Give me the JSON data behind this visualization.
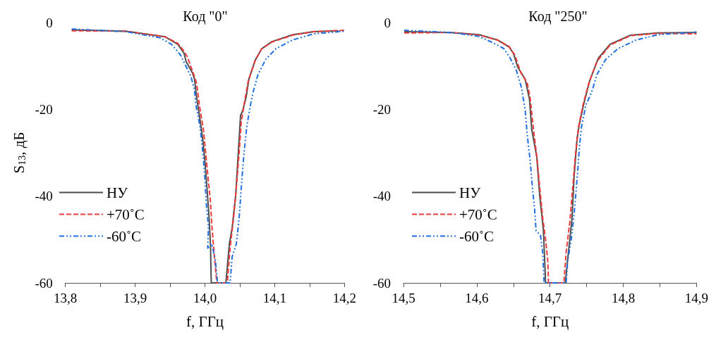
{
  "chart_data": [
    {
      "type": "line",
      "title": "Код \"0\"",
      "xlabel": "f, ГГц",
      "ylabel": "S$_{13}$, дБ",
      "xlim": [
        13.8,
        14.2
      ],
      "ylim": [
        -60,
        0
      ],
      "xticks": [
        {
          "value": 13.8,
          "label": "13,8"
        },
        {
          "value": 13.85,
          "label": null
        },
        {
          "value": 13.9,
          "label": "13,9"
        },
        {
          "value": 13.95,
          "label": null
        },
        {
          "value": 14.0,
          "label": "14,0"
        },
        {
          "value": 14.05,
          "label": null
        },
        {
          "value": 14.1,
          "label": "14,1"
        },
        {
          "value": 14.15,
          "label": null
        },
        {
          "value": 14.2,
          "label": "14,2"
        }
      ],
      "yticks": [
        0,
        -20,
        -40,
        -60
      ],
      "grid": false,
      "legend": "left",
      "marker": "none",
      "series": [
        {
          "name": "НУ",
          "color": "#4d4d4d",
          "line_style": "solid",
          "x": [
            13.809,
            13.886,
            13.943,
            13.961,
            13.97,
            13.973,
            13.982,
            13.985,
            13.988,
            13.993,
            13.997,
            14.0,
            14.003,
            14.006,
            14.008,
            14.009,
            14.03,
            14.035,
            14.039,
            14.044,
            14.048,
            14.051,
            14.054,
            14.059,
            14.063,
            14.072,
            14.081,
            14.096,
            14.126,
            14.156,
            14.191
          ],
          "values": [
            -1.7,
            -2.0,
            -3.3,
            -5.0,
            -7.1,
            -9.0,
            -11.6,
            -13.0,
            -17.2,
            -22.5,
            -27.2,
            -32.0,
            -38.4,
            -45.2,
            -51.6,
            -60,
            -60,
            -51,
            -47.3,
            -39.9,
            -29.4,
            -21.4,
            -20.4,
            -17.2,
            -13.0,
            -8.7,
            -6.1,
            -4.4,
            -2.8,
            -2.1,
            -1.9
          ]
        },
        {
          "name": "+70˚C",
          "color": "#ee3a3a",
          "line_style": "dashed",
          "x": [
            13.809,
            13.886,
            13.943,
            13.961,
            13.97,
            13.975,
            13.984,
            13.988,
            13.992,
            13.998,
            14.001,
            14.004,
            14.008,
            14.01,
            14.013,
            14.017,
            14.032,
            14.036,
            14.041,
            14.045,
            14.049,
            14.052,
            14.057,
            14.062,
            14.072,
            14.081,
            14.096,
            14.126,
            14.156,
            14.2
          ],
          "values": [
            -1.9,
            -2.0,
            -3.3,
            -4.8,
            -6.6,
            -8.0,
            -12.0,
            -14.0,
            -19,
            -25,
            -30,
            -35,
            -41.5,
            -47,
            -53,
            -60,
            -60,
            -52,
            -45,
            -38,
            -30,
            -23,
            -18,
            -13.5,
            -8.7,
            -6.1,
            -4.5,
            -2.9,
            -2.1,
            -1.8
          ]
        },
        {
          "name": "-60˚C",
          "color": "#1f6fe0",
          "line_style": "dashdot",
          "x": [
            13.809,
            13.886,
            13.935,
            13.952,
            13.965,
            13.971,
            13.98,
            13.985,
            13.987,
            13.993,
            13.997,
            14.0,
            14.002,
            14.005,
            14.004,
            14.01,
            14.015,
            14.018,
            14.036,
            14.039,
            14.045,
            14.049,
            14.053,
            14.056,
            14.06,
            14.064,
            14.069,
            14.076,
            14.087,
            14.102,
            14.126,
            14.156,
            14.2
          ],
          "values": [
            -1.5,
            -2.1,
            -3.5,
            -5.0,
            -7.5,
            -9.5,
            -12.5,
            -15.5,
            -19,
            -24,
            -30,
            -36,
            -42,
            -47,
            -52,
            -51,
            -55,
            -60,
            -60,
            -54,
            -51,
            -45,
            -36,
            -30,
            -24,
            -20,
            -16,
            -12,
            -8.5,
            -6,
            -4,
            -2.6,
            -2.0
          ]
        }
      ]
    },
    {
      "type": "line",
      "title": "Код \"250\"",
      "xlabel": "f, ГГц",
      "xlim": [
        14.5,
        14.9
      ],
      "ylim": [
        -60,
        0
      ],
      "xticks": [
        {
          "value": 14.5,
          "label": "14,5"
        },
        {
          "value": 14.55,
          "label": null
        },
        {
          "value": 14.6,
          "label": "14,6"
        },
        {
          "value": 14.65,
          "label": null
        },
        {
          "value": 14.7,
          "label": "14,7"
        },
        {
          "value": 14.75,
          "label": null
        },
        {
          "value": 14.8,
          "label": "14,8"
        },
        {
          "value": 14.85,
          "label": null
        },
        {
          "value": 14.9,
          "label": "14,9"
        }
      ],
      "yticks": [
        0,
        -20,
        -40,
        -60
      ],
      "grid": false,
      "legend": "left",
      "marker": "none",
      "series": [
        {
          "name": "НУ",
          "color": "#4d4d4d",
          "line_style": "solid",
          "x": [
            14.501,
            14.565,
            14.603,
            14.628,
            14.644,
            14.65,
            14.656,
            14.666,
            14.672,
            14.675,
            14.682,
            14.686,
            14.691,
            14.694,
            14.721,
            14.724,
            14.73,
            14.733,
            14.737,
            14.74,
            14.746,
            14.754,
            14.766,
            14.782,
            14.81,
            14.848,
            14.9
          ],
          "values": [
            -2.1,
            -2.3,
            -2.8,
            -4.0,
            -5.6,
            -7.1,
            -10.3,
            -13.0,
            -17.7,
            -24.6,
            -31.0,
            -40,
            -47.9,
            -60,
            -60,
            -54.8,
            -45.2,
            -35.2,
            -26.7,
            -23.5,
            -18.8,
            -13.5,
            -8.2,
            -5.0,
            -2.9,
            -2.4,
            -2.3
          ]
        },
        {
          "name": "+70˚C",
          "color": "#ee3a3a",
          "line_style": "dashed",
          "x": [
            14.501,
            14.565,
            14.603,
            14.628,
            14.644,
            14.652,
            14.66,
            14.669,
            14.673,
            14.677,
            14.682,
            14.686,
            14.69,
            14.694,
            14.697,
            14.698,
            14.719,
            14.722,
            14.727,
            14.731,
            14.735,
            14.739,
            14.745,
            14.753,
            14.764,
            14.782,
            14.81,
            14.848,
            14.9
          ],
          "values": [
            -2.4,
            -2.3,
            -2.9,
            -4.0,
            -5.5,
            -7.5,
            -11.5,
            -14,
            -17.5,
            -24,
            -31,
            -38,
            -45,
            -50,
            -55,
            -60,
            -60,
            -53,
            -46,
            -38,
            -30,
            -24,
            -19,
            -14,
            -9,
            -5.2,
            -3.0,
            -2.5,
            -2.6
          ]
        },
        {
          "name": "-60˚C",
          "color": "#1f6fe0",
          "line_style": "dashdot",
          "x": [
            14.501,
            14.565,
            14.603,
            14.62,
            14.637,
            14.645,
            14.654,
            14.661,
            14.666,
            14.669,
            14.673,
            14.676,
            14.679,
            14.681,
            14.687,
            14.69,
            14.692,
            14.722,
            14.724,
            14.729,
            14.733,
            14.737,
            14.74,
            14.743,
            14.749,
            14.757,
            14.764,
            14.776,
            14.793,
            14.818,
            14.848,
            14.9
          ],
          "values": [
            -1.8,
            -2.3,
            -3.2,
            -4.5,
            -6.0,
            -8,
            -11,
            -15,
            -20,
            -26,
            -32,
            -38,
            -43,
            -48,
            -49,
            -53,
            -60,
            -60,
            -55,
            -50,
            -44,
            -36,
            -29,
            -24,
            -19,
            -16,
            -12,
            -8.5,
            -6,
            -4,
            -2.8,
            -2.2
          ]
        }
      ]
    }
  ]
}
